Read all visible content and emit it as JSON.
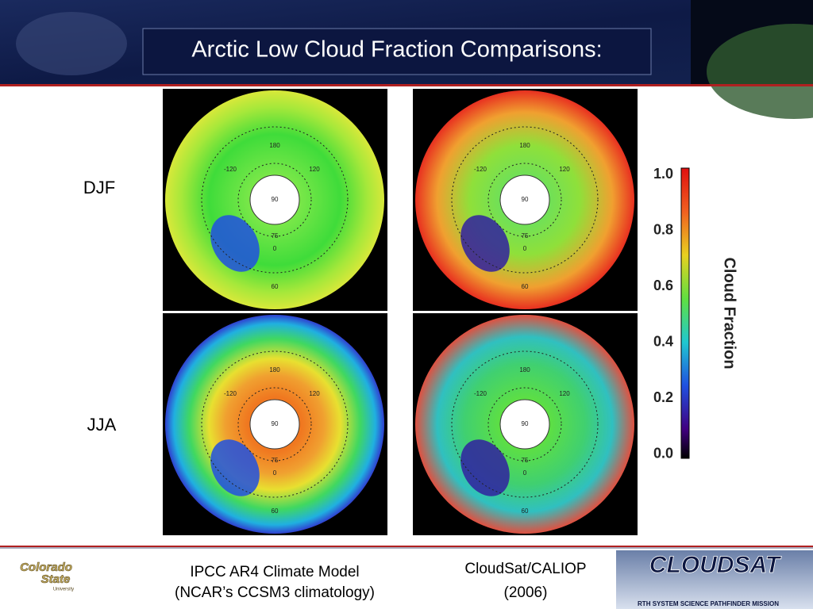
{
  "header": {
    "title": "Arctic Low Cloud Fraction Comparisons:"
  },
  "rows": [
    "DJF",
    "JJA"
  ],
  "map_labels": [
    "180",
    "120",
    "-120",
    "90",
    "75",
    "60",
    "0"
  ],
  "colorbar": {
    "label": "Cloud Fraction",
    "ticks": [
      "1.0",
      "0.8",
      "0.6",
      "0.4",
      "0.2",
      "0.0"
    ]
  },
  "footer": {
    "model": [
      "IPCC AR4 Climate Model",
      "(NCAR’s CCSM3 climatology)"
    ],
    "observed": [
      "CloudSat/CALIOP",
      "(2006)"
    ],
    "left_logo": [
      "Colorado",
      "State",
      "University"
    ],
    "right_logo": [
      "CLOUDSAT",
      "RTH SYSTEM SCIENCE PATHFINDER MISSION"
    ]
  }
}
